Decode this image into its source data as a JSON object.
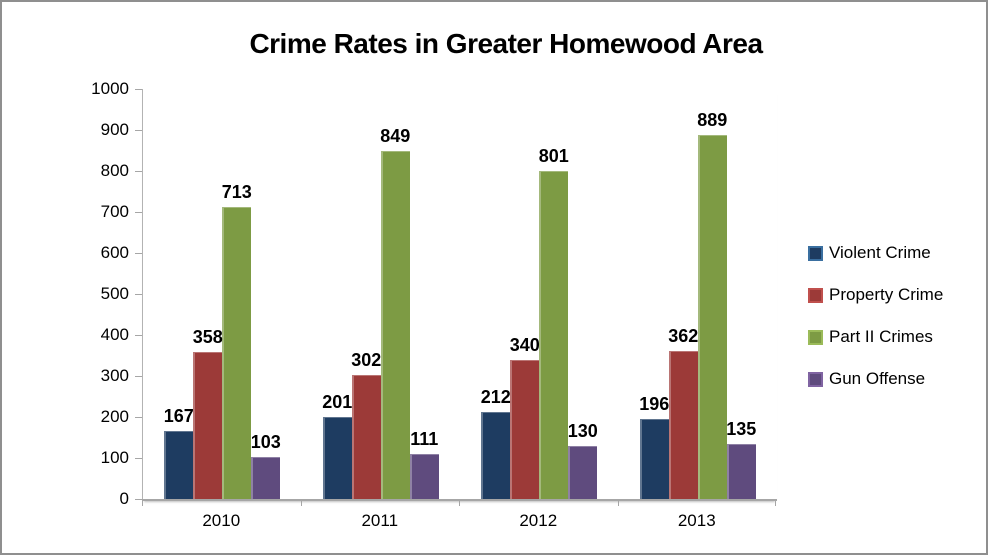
{
  "window": {
    "background": "#FFFFFF",
    "frame_border_color": "#8F8F8F"
  },
  "chart_data": {
    "type": "bar",
    "title": "Crime Rates in Greater Homewood Area",
    "categories": [
      "2010",
      "2011",
      "2012",
      "2013"
    ],
    "series": [
      {
        "name": "Violent Crime",
        "color": "#1E3C61",
        "edge": "#3A6FA0",
        "values": [
          167,
          201,
          212,
          196
        ]
      },
      {
        "name": "Property Crime",
        "color": "#9C3A38",
        "edge": "#C0504D",
        "values": [
          358,
          302,
          340,
          362
        ]
      },
      {
        "name": "Part II Crimes",
        "color": "#7D9B44",
        "edge": "#9BBB59",
        "values": [
          713,
          849,
          801,
          889
        ]
      },
      {
        "name": "Gun Offense",
        "color": "#5F4B7E",
        "edge": "#8064A2",
        "values": [
          103,
          111,
          130,
          135
        ]
      }
    ],
    "ylim": [
      0,
      1000
    ],
    "yticks": [
      0,
      100,
      200,
      300,
      400,
      500,
      600,
      700,
      800,
      900,
      1000
    ],
    "xlabel": "",
    "ylabel": "",
    "data_labels": true,
    "grid": false,
    "legend_position": "right",
    "axis_color": "#A6A6A6",
    "text_color": "#000000"
  }
}
